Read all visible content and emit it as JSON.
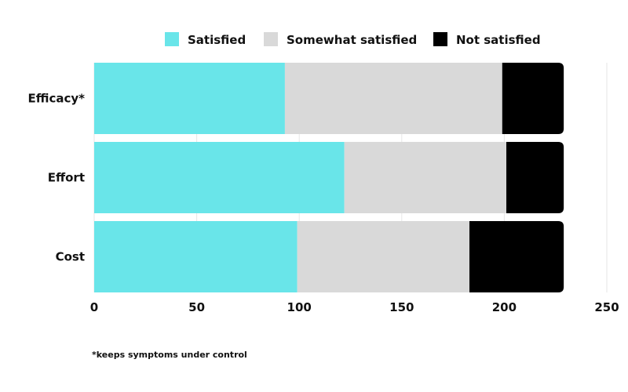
{
  "chart_data": {
    "type": "bar",
    "orientation": "horizontal",
    "stacked": true,
    "categories": [
      "Efficacy*",
      "Effort",
      "Cost"
    ],
    "series": [
      {
        "name": "Satisfied",
        "color": "#69e5e9",
        "values": [
          93,
          122,
          99
        ]
      },
      {
        "name": "Somewhat satisfied",
        "color": "#d9d9d9",
        "values": [
          106,
          79,
          84
        ]
      },
      {
        "name": "Not satisfied",
        "color": "#000000",
        "values": [
          30,
          28,
          46
        ]
      }
    ],
    "xlim": [
      0,
      250
    ],
    "xticks": [
      0,
      50,
      100,
      150,
      200,
      250
    ],
    "grid": true,
    "legend_position": "top"
  },
  "footnote": "*keeps symptoms under control"
}
